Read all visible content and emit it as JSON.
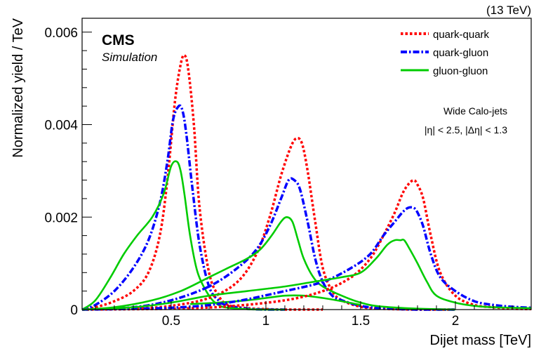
{
  "chart_data": {
    "type": "line",
    "energy_label": "(13 TeV)",
    "experiment": "CMS",
    "experiment_sub": "Simulation",
    "xlabel": "Dijet mass [TeV]",
    "ylabel": "Normalized yield / TeV",
    "xlim": [
      0.03,
      2.4
    ],
    "ylim": [
      0,
      0.0063
    ],
    "xticks": [
      0.5,
      1,
      1.5,
      2
    ],
    "xtick_labels": [
      "0.5",
      "1",
      "1.5",
      "2"
    ],
    "yticks": [
      0,
      0.002,
      0.004,
      0.006
    ],
    "ytick_labels": [
      "0",
      "0.002",
      "0.004",
      "0.006"
    ],
    "grid": false,
    "legend_placement": "top-right",
    "annotations": [
      "Wide Calo-jets",
      "|η| < 2.5, |Δη| < 1.3"
    ],
    "colors": {
      "quark-quark": "#ff0000",
      "quark-gluon": "#0000ff",
      "gluon-gluon": "#00cc00"
    },
    "series": [
      {
        "name": "quark-quark",
        "color": "#ff0000",
        "style": "dotted",
        "resonance": "0.5 TeV",
        "x": [
          0.03,
          0.1,
          0.2,
          0.3,
          0.38,
          0.44,
          0.48,
          0.52,
          0.55,
          0.57,
          0.59,
          0.62,
          0.65,
          0.7,
          0.75,
          0.8,
          0.9,
          1.0,
          1.1,
          1.2,
          1.3
        ],
        "y": [
          0,
          5e-05,
          0.00018,
          0.0004,
          0.0008,
          0.0016,
          0.0028,
          0.0045,
          0.0053,
          0.0055,
          0.0052,
          0.004,
          0.0022,
          0.0008,
          0.0003,
          0.0001,
          3e-05,
          1e-05,
          0,
          0,
          0
        ]
      },
      {
        "name": "quark-gluon",
        "color": "#0000ff",
        "style": "dashdot",
        "resonance": "0.5 TeV",
        "x": [
          0.03,
          0.1,
          0.2,
          0.3,
          0.38,
          0.44,
          0.48,
          0.51,
          0.54,
          0.56,
          0.58,
          0.61,
          0.65,
          0.7,
          0.75,
          0.8,
          0.9,
          1.0,
          1.1
        ],
        "y": [
          0,
          0.0001,
          0.0004,
          0.0009,
          0.0015,
          0.0023,
          0.0032,
          0.0041,
          0.0044,
          0.0043,
          0.0038,
          0.0027,
          0.0014,
          0.0005,
          0.0002,
          8e-05,
          2e-05,
          0,
          0
        ]
      },
      {
        "name": "gluon-gluon",
        "color": "#00cc00",
        "style": "solid",
        "resonance": "0.5 TeV",
        "x": [
          0.03,
          0.1,
          0.18,
          0.25,
          0.32,
          0.4,
          0.46,
          0.5,
          0.53,
          0.55,
          0.57,
          0.6,
          0.64,
          0.7,
          0.75,
          0.8,
          0.9,
          1.0,
          1.1
        ],
        "y": [
          0,
          0.0002,
          0.0007,
          0.0012,
          0.0016,
          0.002,
          0.0025,
          0.0031,
          0.0032,
          0.003,
          0.0025,
          0.0016,
          0.0008,
          0.0003,
          0.0001,
          4e-05,
          1e-05,
          0,
          0
        ]
      },
      {
        "name": "quark-quark",
        "color": "#ff0000",
        "style": "dotted",
        "resonance": "1.2 TeV",
        "x": [
          0.03,
          0.3,
          0.5,
          0.7,
          0.85,
          0.95,
          1.02,
          1.08,
          1.13,
          1.16,
          1.19,
          1.22,
          1.26,
          1.3,
          1.35,
          1.4,
          1.5,
          1.6,
          1.8,
          2.0
        ],
        "y": [
          0,
          2e-05,
          8e-05,
          0.00025,
          0.0006,
          0.0012,
          0.002,
          0.0029,
          0.0035,
          0.0037,
          0.0036,
          0.003,
          0.0019,
          0.0009,
          0.0004,
          0.0002,
          6e-05,
          2e-05,
          0,
          0
        ]
      },
      {
        "name": "quark-gluon",
        "color": "#0000ff",
        "style": "dashdot",
        "resonance": "1.2 TeV",
        "x": [
          0.03,
          0.3,
          0.5,
          0.7,
          0.85,
          0.95,
          1.02,
          1.08,
          1.12,
          1.15,
          1.18,
          1.22,
          1.26,
          1.3,
          1.35,
          1.4,
          1.5,
          1.6,
          1.8,
          2.0
        ],
        "y": [
          0,
          5e-05,
          0.0002,
          0.0005,
          0.0009,
          0.0013,
          0.0018,
          0.0024,
          0.0028,
          0.0028,
          0.0026,
          0.0019,
          0.0011,
          0.0006,
          0.0003,
          0.0002,
          8e-05,
          3e-05,
          0,
          0
        ]
      },
      {
        "name": "gluon-gluon",
        "color": "#00cc00",
        "style": "solid",
        "resonance": "1.2 TeV",
        "x": [
          0.03,
          0.2,
          0.4,
          0.55,
          0.7,
          0.8,
          0.9,
          0.97,
          1.03,
          1.08,
          1.11,
          1.14,
          1.17,
          1.2,
          1.25,
          1.3,
          1.4,
          1.5,
          1.6,
          1.8,
          2.0
        ],
        "y": [
          0,
          5e-05,
          0.0002,
          0.0004,
          0.0007,
          0.0009,
          0.0011,
          0.0013,
          0.0016,
          0.0019,
          0.002,
          0.0019,
          0.0015,
          0.0011,
          0.0007,
          0.0005,
          0.0003,
          0.00015,
          7e-05,
          2e-05,
          0
        ],
        "low_branch_x": [
          0.6,
          0.75,
          0.9,
          1.0,
          1.1,
          1.2,
          1.3,
          1.4,
          1.5
        ],
        "low_branch_y": [
          0.00012,
          0.00015,
          0.0002,
          0.00025,
          0.0003,
          0.0003,
          0.00025,
          0.00018,
          0.0001
        ]
      },
      {
        "name": "quark-quark",
        "color": "#ff0000",
        "style": "dotted",
        "resonance": "1.8 TeV",
        "x": [
          0.03,
          0.5,
          0.8,
          1.1,
          1.3,
          1.45,
          1.55,
          1.62,
          1.68,
          1.72,
          1.75,
          1.78,
          1.8,
          1.83,
          1.87,
          1.92,
          2.0,
          2.1,
          2.2,
          2.3,
          2.4
        ],
        "y": [
          0,
          2e-05,
          7e-05,
          0.0002,
          0.0004,
          0.0007,
          0.0011,
          0.0016,
          0.0021,
          0.0025,
          0.0027,
          0.0028,
          0.0027,
          0.0024,
          0.0016,
          0.0008,
          0.0003,
          0.0001,
          5e-05,
          2e-05,
          1e-05
        ]
      },
      {
        "name": "quark-gluon",
        "color": "#0000ff",
        "style": "dashdot",
        "resonance": "1.8 TeV",
        "x": [
          0.03,
          0.5,
          0.8,
          1.1,
          1.3,
          1.45,
          1.55,
          1.62,
          1.68,
          1.72,
          1.75,
          1.78,
          1.8,
          1.83,
          1.87,
          1.92,
          2.0,
          2.1,
          2.2,
          2.3,
          2.4
        ],
        "y": [
          0,
          4e-05,
          0.00015,
          0.0004,
          0.0006,
          0.0009,
          0.0012,
          0.0016,
          0.0019,
          0.0021,
          0.0022,
          0.0022,
          0.0021,
          0.0018,
          0.0012,
          0.0007,
          0.0004,
          0.00018,
          0.0001,
          6e-05,
          4e-05
        ]
      },
      {
        "name": "gluon-gluon",
        "color": "#00cc00",
        "style": "solid",
        "resonance": "1.8 TeV",
        "x": [
          0.03,
          0.3,
          0.5,
          0.7,
          0.9,
          1.1,
          1.25,
          1.4,
          1.5,
          1.58,
          1.64,
          1.68,
          1.71,
          1.73,
          1.76,
          1.8,
          1.85,
          1.9,
          2.0,
          2.1,
          2.2,
          2.3,
          2.4
        ],
        "y": [
          0,
          5e-05,
          0.00015,
          0.0003,
          0.0004,
          0.0005,
          0.0006,
          0.0007,
          0.0008,
          0.0011,
          0.0014,
          0.0015,
          0.0015,
          0.0015,
          0.0013,
          0.001,
          0.0006,
          0.0003,
          0.00015,
          8e-05,
          5e-05,
          4e-05,
          3e-05
        ]
      }
    ]
  }
}
